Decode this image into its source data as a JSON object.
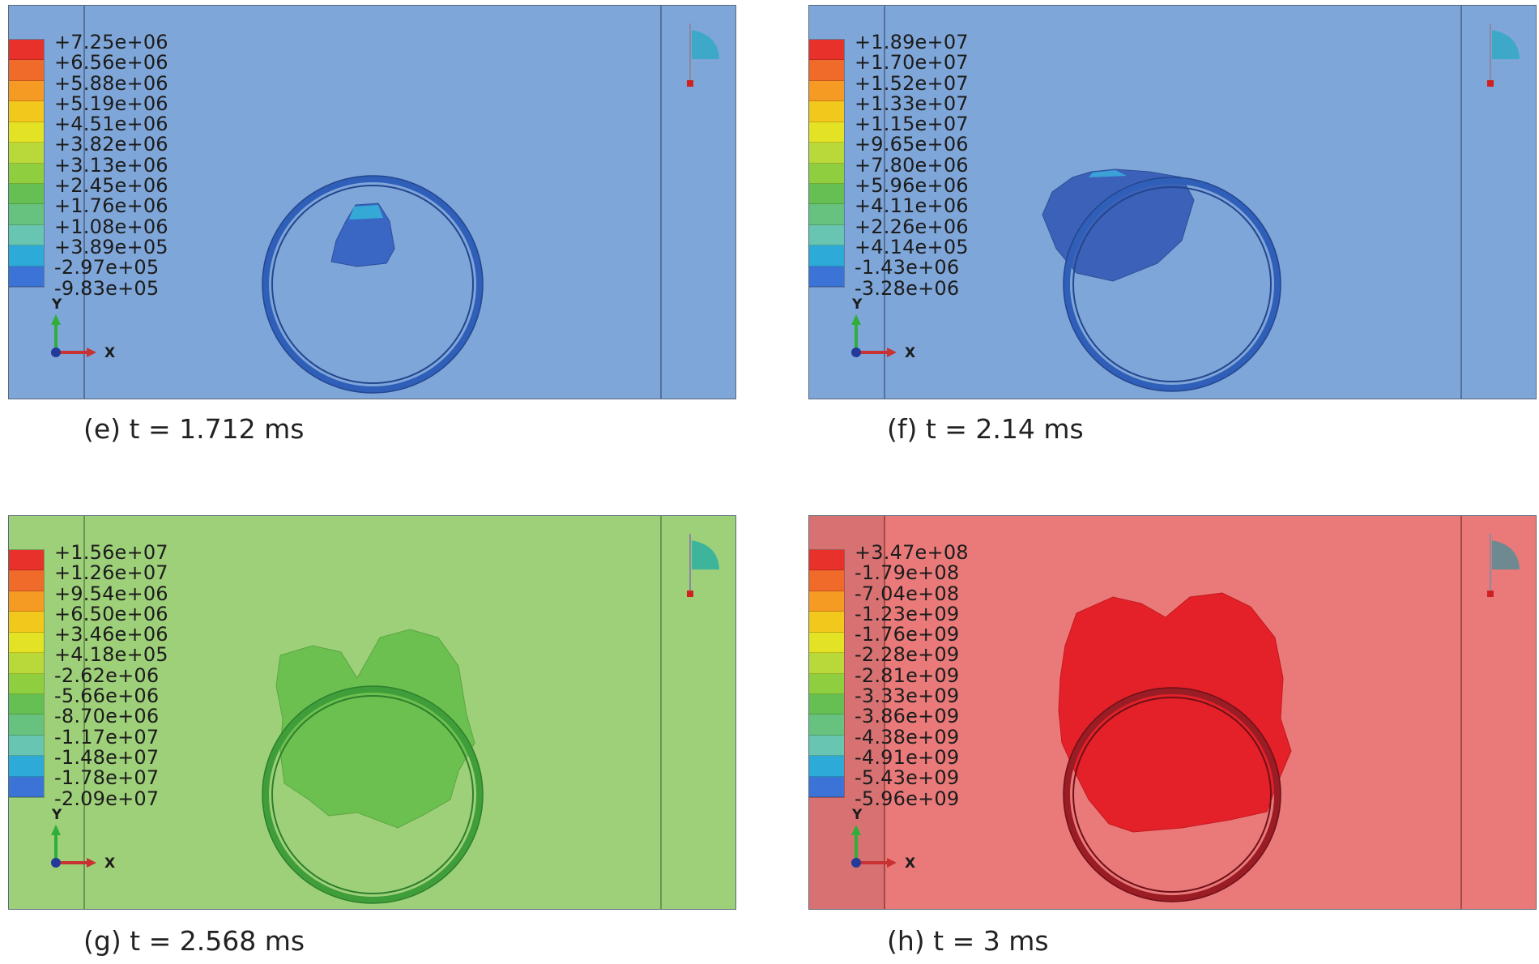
{
  "colormap": [
    "#e8312b",
    "#f06a2a",
    "#f59a22",
    "#f2c81c",
    "#e4e224",
    "#b9d83a",
    "#8fcf3f",
    "#66bf52",
    "#67c27f",
    "#68c5b2",
    "#2eaad8",
    "#3b74d6",
    "#3a5ab2"
  ],
  "axes": {
    "y_label": "Y",
    "x_label": "X"
  },
  "panels": [
    {
      "caption": "(e) t = 1.712 ms",
      "background": "#7fa6d9",
      "ring_color": "#2f5fb8",
      "blob_color": "#3a67c4",
      "legend": [
        "+7.25e+06",
        "+6.56e+06",
        "+5.88e+06",
        "+5.19e+06",
        "+4.51e+06",
        "+3.82e+06",
        "+3.13e+06",
        "+2.45e+06",
        "+1.76e+06",
        "+1.08e+06",
        "+3.89e+05",
        "-2.97e+05",
        "-9.83e+05"
      ]
    },
    {
      "caption": "(f) t = 2.14 ms",
      "background": "#7fa6d9",
      "ring_color": "#2f5fb8",
      "blob_color": "#3b62b8",
      "legend": [
        "+1.89e+07",
        "+1.70e+07",
        "+1.52e+07",
        "+1.33e+07",
        "+1.15e+07",
        "+9.65e+06",
        "+7.80e+06",
        "+5.96e+06",
        "+4.11e+06",
        "+2.26e+06",
        "+4.14e+05",
        "-1.43e+06",
        "-3.28e+06"
      ]
    },
    {
      "caption": "(g) t = 2.568 ms",
      "background": "#9ed07a",
      "ring_color": "#3f9e3a",
      "blob_color": "#6cc04f",
      "legend": [
        "+1.56e+07",
        "+1.26e+07",
        "+9.54e+06",
        "+6.50e+06",
        "+3.46e+06",
        "+4.18e+05",
        "-2.62e+06",
        "-5.66e+06",
        "-8.70e+06",
        "-1.17e+07",
        "-1.48e+07",
        "-1.78e+07",
        "-2.09e+07"
      ]
    },
    {
      "caption": "(h) t = 3 ms",
      "background": "#ea7a7a",
      "ring_color": "#9a1c24",
      "blob_color": "#e42128",
      "legend": [
        "+3.47e+08",
        "-1.79e+08",
        "-7.04e+08",
        "-1.23e+09",
        "-1.76e+09",
        "-2.28e+09",
        "-2.81e+09",
        "-3.33e+09",
        "-3.86e+09",
        "-4.38e+09",
        "-4.91e+09",
        "-5.43e+09",
        "-5.96e+09"
      ]
    }
  ]
}
